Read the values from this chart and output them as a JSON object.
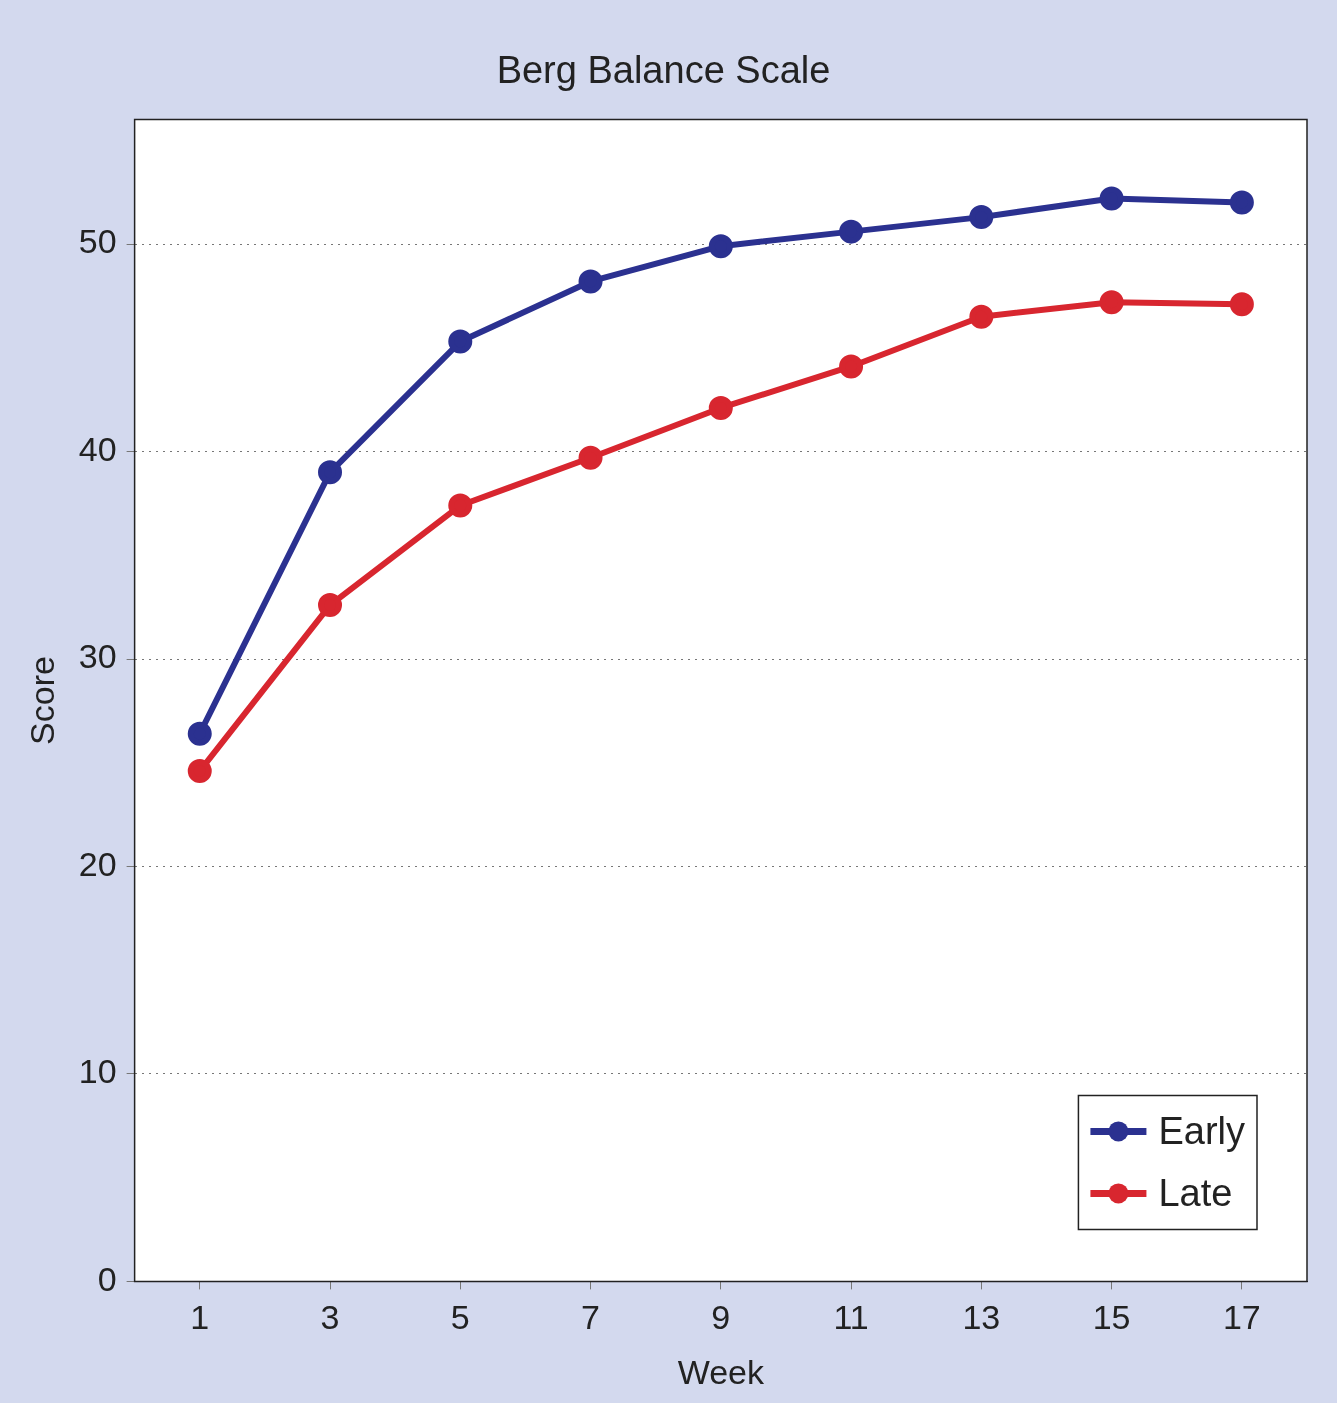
{
  "chart_data": {
    "type": "line",
    "title": "Berg Balance Scale",
    "xlabel": "Week",
    "ylabel": "Score",
    "x": [
      1,
      3,
      5,
      7,
      9,
      11,
      13,
      15,
      17
    ],
    "series": [
      {
        "name": "Early",
        "color": "#2b3190",
        "values": [
          26.4,
          39.0,
          45.3,
          48.2,
          49.9,
          50.6,
          51.3,
          52.2,
          52.0
        ]
      },
      {
        "name": "Late",
        "color": "#d8262f",
        "values": [
          24.6,
          32.6,
          37.4,
          39.7,
          42.1,
          44.1,
          46.5,
          47.2,
          47.1
        ]
      }
    ],
    "xlim": [
      0,
      18
    ],
    "ylim": [
      0,
      56
    ],
    "xticks": [
      1,
      3,
      5,
      7,
      9,
      11,
      13,
      15,
      17
    ],
    "yticks": [
      0,
      10,
      20,
      30,
      40,
      50
    ],
    "grid": "y",
    "legend": "bottom right",
    "marker": "circle",
    "line_style": "solid"
  }
}
